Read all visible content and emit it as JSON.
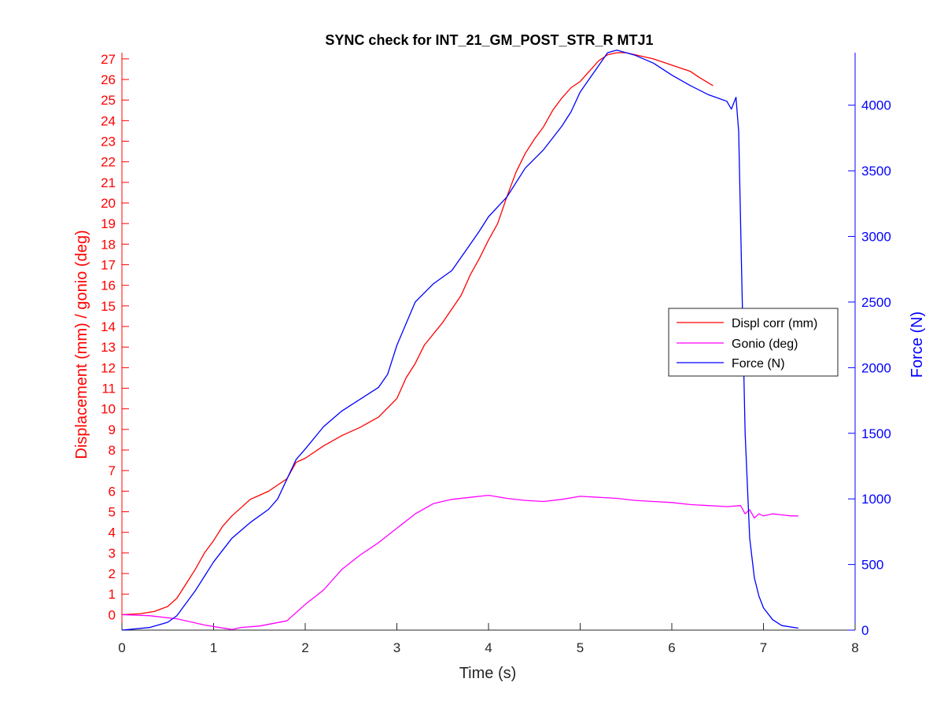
{
  "chart_data": {
    "type": "line",
    "title": "SYNC check for INT_21_GM_POST_STR_R MTJ1",
    "xlabel": "Time (s)",
    "ylabel_left": "Displacement (mm) / gonio (deg)",
    "ylabel_right": "Force (N)",
    "xlim": [
      0,
      8
    ],
    "ylim_left": [
      -0.75,
      27.3
    ],
    "ylim_right": [
      0,
      4400
    ],
    "x_ticks": [
      "0",
      "1",
      "2",
      "3",
      "4",
      "5",
      "6",
      "7",
      "8"
    ],
    "y_left_ticks": [
      "0",
      "1",
      "2",
      "3",
      "4",
      "5",
      "6",
      "7",
      "8",
      "9",
      "10",
      "11",
      "12",
      "13",
      "14",
      "15",
      "16",
      "17",
      "18",
      "19",
      "20",
      "21",
      "22",
      "23",
      "24",
      "25",
      "26",
      "27"
    ],
    "y_right_ticks": [
      "0",
      "500",
      "1000",
      "1500",
      "2000",
      "2500",
      "3000",
      "3500",
      "4000"
    ],
    "grid": false,
    "legend_position": "right",
    "colors": {
      "displ": "#ff0000",
      "gonio": "#ff00ff",
      "force": "#0000ff",
      "axis": "#262626"
    },
    "series": [
      {
        "name": "Displ corr (mm)",
        "axis": "left",
        "x": [
          0,
          0.2,
          0.35,
          0.5,
          0.6,
          0.7,
          0.8,
          0.9,
          1.0,
          1.1,
          1.2,
          1.3,
          1.4,
          1.5,
          1.6,
          1.7,
          1.8,
          1.9,
          2.0,
          2.2,
          2.4,
          2.6,
          2.8,
          3.0,
          3.1,
          3.2,
          3.3,
          3.5,
          3.7,
          3.8,
          3.9,
          4.0,
          4.1,
          4.2,
          4.3,
          4.4,
          4.5,
          4.6,
          4.7,
          4.8,
          4.9,
          5.0,
          5.1,
          5.2,
          5.3,
          5.4,
          5.5,
          5.6,
          5.7,
          5.8,
          6.0,
          6.2,
          6.3,
          6.45
        ],
        "y": [
          0,
          0.05,
          0.15,
          0.4,
          0.8,
          1.5,
          2.2,
          3.0,
          3.6,
          4.3,
          4.8,
          5.2,
          5.6,
          5.8,
          6.0,
          6.3,
          6.6,
          7.4,
          7.6,
          8.2,
          8.7,
          9.1,
          9.6,
          10.5,
          11.5,
          12.2,
          13.1,
          14.2,
          15.5,
          16.5,
          17.3,
          18.2,
          19.0,
          20.3,
          21.5,
          22.4,
          23.1,
          23.7,
          24.5,
          25.1,
          25.6,
          25.9,
          26.4,
          26.9,
          27.2,
          27.3,
          27.3,
          27.2,
          27.1,
          27.0,
          26.7,
          26.4,
          26.1,
          25.7
        ]
      },
      {
        "name": "Gonio (deg)",
        "axis": "left",
        "x": [
          0,
          0.3,
          0.6,
          0.9,
          1.2,
          1.3,
          1.5,
          1.8,
          2.0,
          2.2,
          2.4,
          2.6,
          2.8,
          3.0,
          3.2,
          3.4,
          3.6,
          3.8,
          4.0,
          4.2,
          4.4,
          4.6,
          4.8,
          5.0,
          5.2,
          5.4,
          5.6,
          5.8,
          6.0,
          6.2,
          6.4,
          6.6,
          6.75,
          6.8,
          6.85,
          6.9,
          6.95,
          7.0,
          7.1,
          7.2,
          7.3,
          7.38
        ],
        "y": [
          0,
          -0.05,
          -0.2,
          -0.5,
          -0.72,
          -0.62,
          -0.55,
          -0.3,
          0.5,
          1.2,
          2.2,
          2.9,
          3.5,
          4.2,
          4.9,
          5.4,
          5.6,
          5.7,
          5.8,
          5.65,
          5.55,
          5.5,
          5.6,
          5.75,
          5.7,
          5.65,
          5.55,
          5.5,
          5.45,
          5.35,
          5.3,
          5.25,
          5.3,
          4.9,
          5.1,
          4.7,
          4.9,
          4.8,
          4.9,
          4.85,
          4.8,
          4.8
        ]
      },
      {
        "name": "Force (N)",
        "axis": "right",
        "x": [
          0,
          0.3,
          0.5,
          0.6,
          0.8,
          1.0,
          1.2,
          1.4,
          1.6,
          1.7,
          1.8,
          1.9,
          2.0,
          2.2,
          2.4,
          2.6,
          2.8,
          2.9,
          3.0,
          3.2,
          3.4,
          3.6,
          3.8,
          3.9,
          4.0,
          4.2,
          4.4,
          4.6,
          4.8,
          4.9,
          5.0,
          5.1,
          5.2,
          5.3,
          5.4,
          5.5,
          5.6,
          5.7,
          5.8,
          6.0,
          6.2,
          6.4,
          6.6,
          6.65,
          6.7,
          6.73,
          6.76,
          6.8,
          6.85,
          6.9,
          6.95,
          7.0,
          7.1,
          7.2,
          7.38
        ],
        "y": [
          0,
          20,
          60,
          110,
          300,
          520,
          700,
          820,
          920,
          1000,
          1150,
          1300,
          1380,
          1550,
          1670,
          1760,
          1850,
          1950,
          2170,
          2500,
          2640,
          2740,
          2940,
          3040,
          3150,
          3300,
          3520,
          3660,
          3840,
          3950,
          4100,
          4200,
          4300,
          4400,
          4420,
          4400,
          4380,
          4350,
          4320,
          4230,
          4150,
          4080,
          4030,
          3970,
          4060,
          3800,
          2800,
          1500,
          700,
          400,
          260,
          170,
          80,
          35,
          15
        ]
      }
    ]
  }
}
